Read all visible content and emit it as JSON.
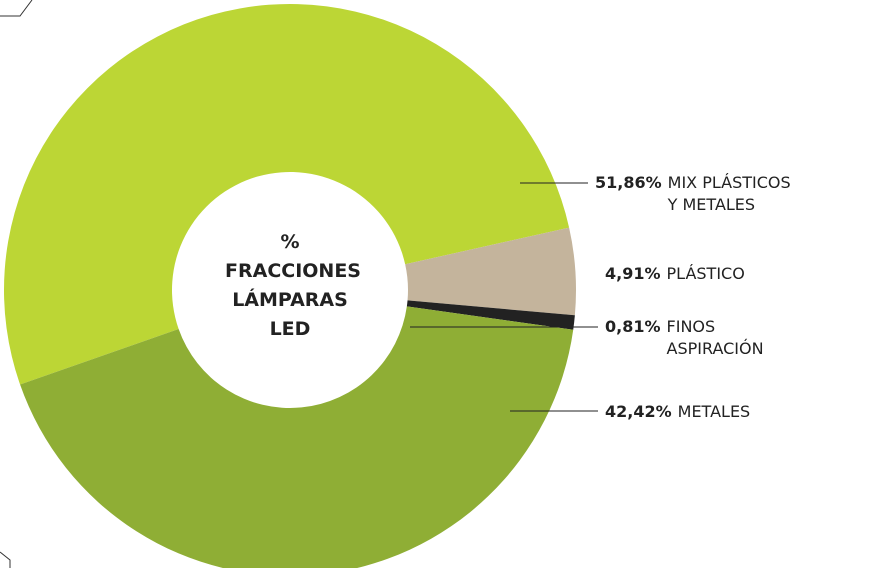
{
  "chart_data": {
    "type": "donut",
    "title": "% FRACCIONES LÁMPARAS LED",
    "categories": [
      "MIX PLÁSTICOS Y METALES",
      "PLÁSTICO",
      "FINOS ASPIRACIÓN",
      "METALES"
    ],
    "values": [
      51.86,
      4.91,
      0.81,
      42.42
    ],
    "value_labels": [
      "51,86%",
      "4,91%",
      "0,81%",
      "42,42%"
    ],
    "colors": [
      "#bcd635",
      "#c4b49c",
      "#222222",
      "#8fae35"
    ]
  }
}
